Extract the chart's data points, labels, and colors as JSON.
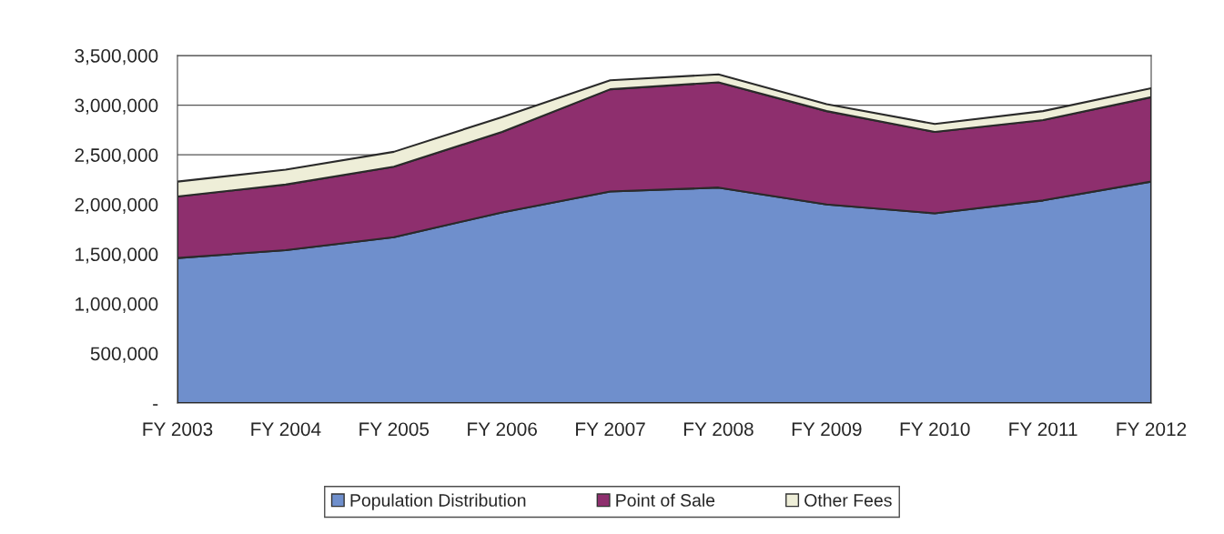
{
  "chart_data": {
    "type": "area",
    "stacked": true,
    "categories": [
      "FY 2003",
      "FY 2004",
      "FY 2005",
      "FY 2006",
      "FY 2007",
      "FY 2008",
      "FY 2009",
      "FY 2010",
      "FY 2011",
      "FY 2012"
    ],
    "series": [
      {
        "name": "Population Distribution",
        "color": "#6f8fcc",
        "values": [
          1460000,
          1540000,
          1670000,
          1920000,
          2130000,
          2170000,
          2000000,
          1910000,
          2040000,
          2230000
        ]
      },
      {
        "name": "Point of Sale",
        "color": "#8e2f6e",
        "values": [
          620000,
          660000,
          710000,
          810000,
          1030000,
          1060000,
          940000,
          820000,
          810000,
          850000
        ]
      },
      {
        "name": "Other Fees",
        "color": "#eeeed8",
        "values": [
          150000,
          150000,
          150000,
          150000,
          90000,
          80000,
          70000,
          80000,
          90000,
          90000
        ]
      }
    ],
    "ylim": [
      0,
      3500000
    ],
    "yticks": [
      {
        "value": 0,
        "label": "-"
      },
      {
        "value": 500000,
        "label": "500,000"
      },
      {
        "value": 1000000,
        "label": "1,000,000"
      },
      {
        "value": 1500000,
        "label": "1,500,000"
      },
      {
        "value": 2000000,
        "label": "2,000,000"
      },
      {
        "value": 2500000,
        "label": "2,500,000"
      },
      {
        "value": 3000000,
        "label": "3,000,000"
      },
      {
        "value": 3500000,
        "label": "3,500,000"
      }
    ],
    "grid": "y",
    "legend": "bottom"
  }
}
